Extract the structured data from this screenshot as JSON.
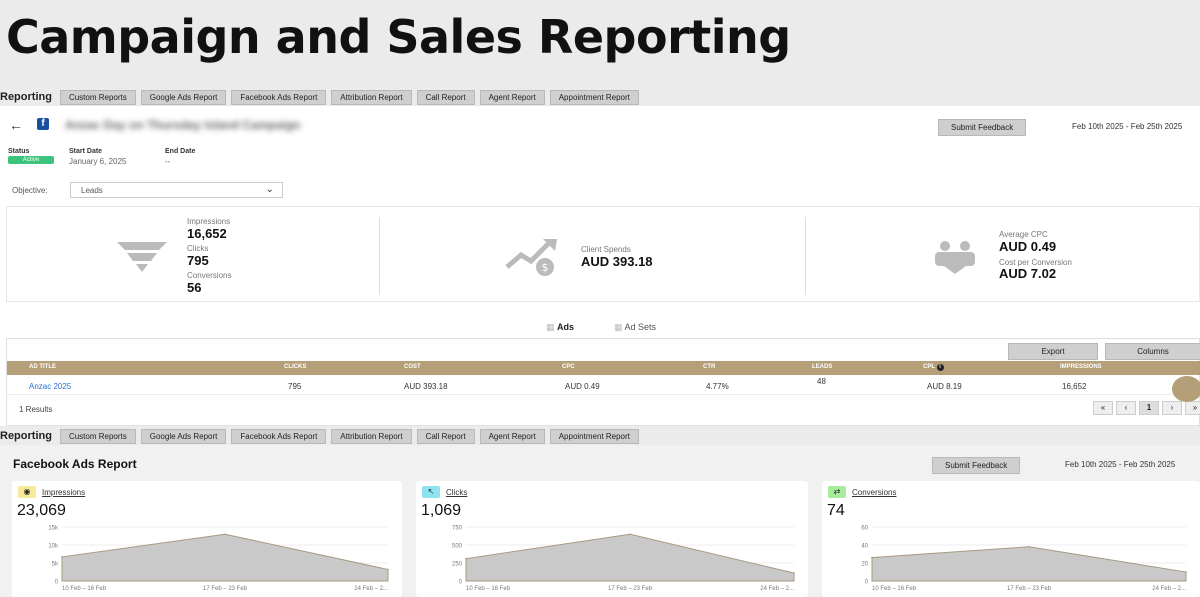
{
  "page_title": "Campaign and Sales Reporting",
  "tabbar": {
    "label": "Reporting",
    "tabs": [
      "Custom Reports",
      "Google Ads Report",
      "Facebook Ads Report",
      "Attribution Report",
      "Call Report",
      "Agent Report",
      "Appointment Report"
    ]
  },
  "campaign": {
    "name": "Anzac Day on Thursday Island Campaign",
    "feedback_label": "Submit Feedback",
    "date_range": "Feb 10th 2025 - Feb 25th 2025",
    "status_label": "Status",
    "status_value": "Active",
    "start_label": "Start Date",
    "start_value": "January 6, 2025",
    "end_label": "End Date",
    "end_value": "--",
    "objective_label": "Objective:",
    "objective_value": "Leads"
  },
  "stats": {
    "impressions_label": "Impressions",
    "impressions_value": "16,652",
    "clicks_label": "Clicks",
    "clicks_value": "795",
    "conversions_label": "Conversions",
    "conversions_value": "56",
    "spend_label": "Client Spends",
    "spend_value": "AUD 393.18",
    "avg_cpc_label": "Average CPC",
    "avg_cpc_value": "AUD 0.49",
    "cpconv_label": "Cost per Conversion",
    "cpconv_value": "AUD 7.02"
  },
  "view_tabs": {
    "ads": "Ads",
    "ad_sets": "Ad Sets"
  },
  "table": {
    "export_label": "Export",
    "columns_label": "Columns",
    "headers": [
      "AD TITLE",
      "CLICKS",
      "COST",
      "CPC",
      "CTR",
      "LEADS",
      "CPL",
      "IMPRESSIONS"
    ],
    "row": [
      "Anzac 2025",
      "795",
      "AUD 393.18",
      "AUD 0.49",
      "4.77%",
      "48",
      "AUD 8.19",
      "16,652"
    ],
    "results": "1 Results",
    "pager": [
      "«",
      "‹",
      "1",
      "›",
      "»"
    ]
  },
  "fb_report": {
    "title": "Facebook Ads Report",
    "feedback_label": "Submit Feedback",
    "date_range": "Feb 10th 2025 - Feb 25th 2025",
    "cards": [
      {
        "label": "Impressions",
        "value": "23,069",
        "icon_color": "#f6eb9a",
        "yticks": [
          "15k",
          "10k",
          "5k",
          "0"
        ],
        "ymax": 15000,
        "points": [
          6700,
          13000,
          3200
        ],
        "xticks": [
          "10 Feb – 16 Feb",
          "17 Feb – 23 Feb",
          "24 Feb – 2..."
        ]
      },
      {
        "label": "Clicks",
        "value": "1,069",
        "icon_color": "#8fe3f0",
        "yticks": [
          "750",
          "500",
          "250",
          "0"
        ],
        "ymax": 750,
        "points": [
          310,
          650,
          110
        ],
        "xticks": [
          "10 Feb – 16 Feb",
          "17 Feb – 23 Feb",
          "24 Feb – 2..."
        ]
      },
      {
        "label": "Conversions",
        "value": "74",
        "icon_color": "#a6ec9a",
        "yticks": [
          "60",
          "40",
          "20",
          "0"
        ],
        "ymax": 60,
        "points": [
          26,
          38,
          10
        ],
        "xticks": [
          "10 Feb – 16 Feb",
          "17 Feb – 23 Feb",
          "24 Feb – 2..."
        ]
      }
    ]
  },
  "colors": {
    "table_header": "#b59f78",
    "status_green": "#3cc47c",
    "chart_fill": "#c9c9c9",
    "link_blue": "#2a6fd6"
  }
}
